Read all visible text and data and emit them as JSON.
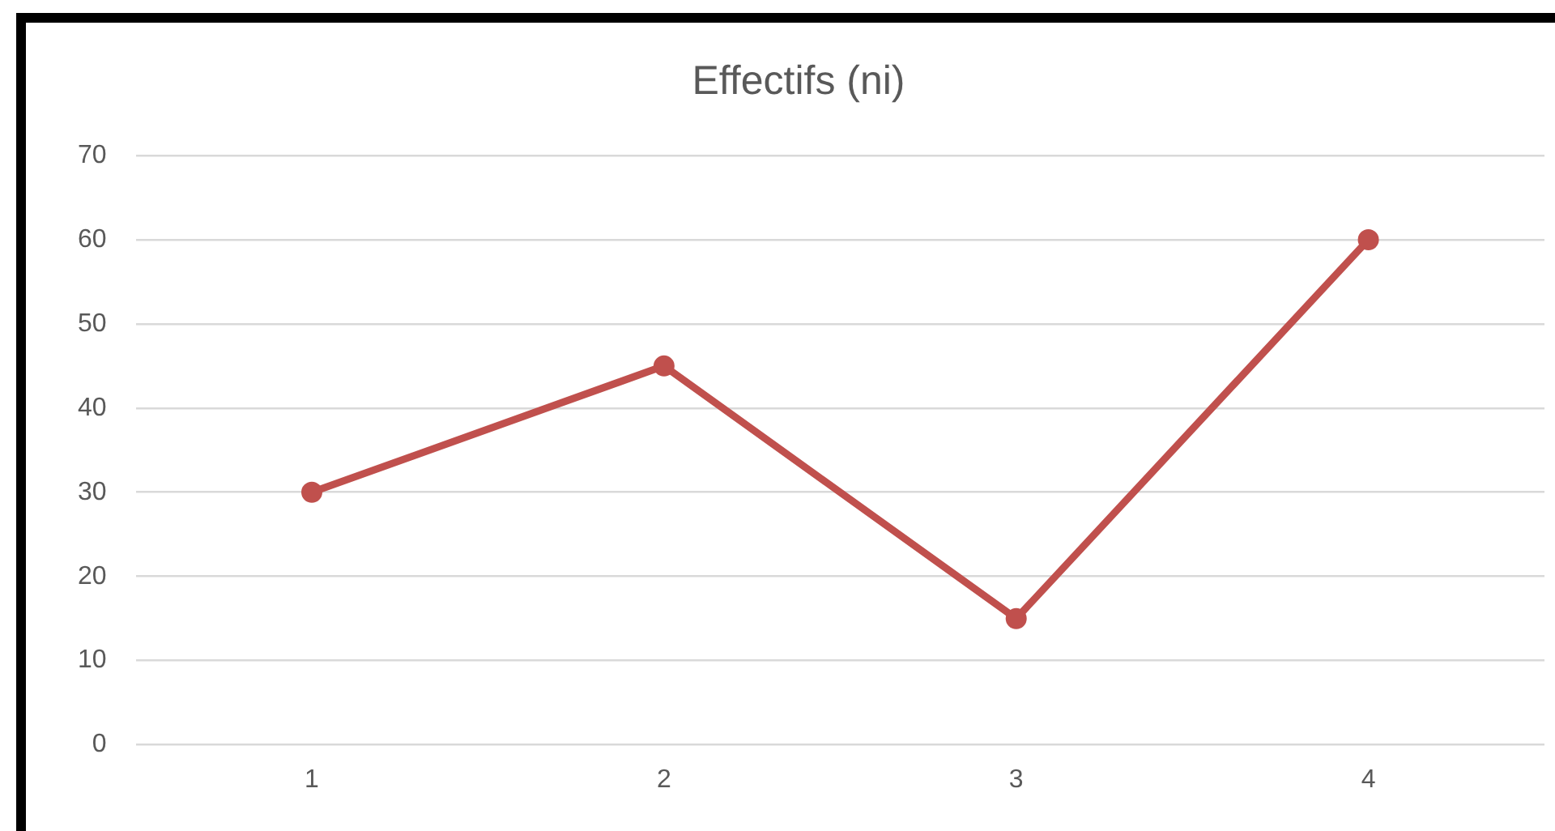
{
  "chart_data": {
    "type": "line",
    "title": "Effectifs (ni)",
    "categories": [
      "1",
      "2",
      "3",
      "4"
    ],
    "series": [
      {
        "color": "#c0504d",
        "values": [
          30,
          45,
          15,
          60
        ]
      }
    ],
    "ylim": [
      0,
      70
    ],
    "yticks": [
      0,
      10,
      20,
      30,
      40,
      50,
      60,
      70
    ],
    "grid": "y",
    "legend": false,
    "marker": "circle",
    "line_style": "solid"
  }
}
